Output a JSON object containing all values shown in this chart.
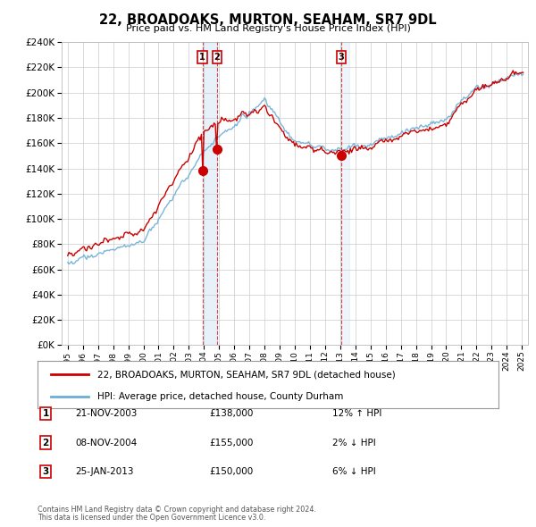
{
  "title": "22, BROADOAKS, MURTON, SEAHAM, SR7 9DL",
  "subtitle": "Price paid vs. HM Land Registry's House Price Index (HPI)",
  "legend_line1": "22, BROADOAKS, MURTON, SEAHAM, SR7 9DL (detached house)",
  "legend_line2": "HPI: Average price, detached house, County Durham",
  "footer1": "Contains HM Land Registry data © Crown copyright and database right 2024.",
  "footer2": "This data is licensed under the Open Government Licence v3.0.",
  "transactions": [
    {
      "label": "1",
      "date": "21-NOV-2003",
      "price": "£138,000",
      "hpi_note": "12% ↑ HPI",
      "x": 2003.9
    },
    {
      "label": "2",
      "date": "08-NOV-2004",
      "price": "£155,000",
      "hpi_note": "2% ↓ HPI",
      "x": 2004.86
    },
    {
      "label": "3",
      "date": "25-JAN-2013",
      "price": "£150,000",
      "hpi_note": "6% ↓ HPI",
      "x": 2013.07
    }
  ],
  "sale_price_1": 138000,
  "sale_price_2": 155000,
  "sale_price_3": 150000,
  "hpi_color": "#6baed6",
  "hpi_fill_color": "#d6e8f7",
  "sale_color": "#cc0000",
  "vline_color": "#cc0000",
  "background_color": "#ffffff",
  "grid_color": "#cccccc",
  "ylim": [
    0,
    240000
  ],
  "yticks": [
    0,
    20000,
    40000,
    60000,
    80000,
    100000,
    120000,
    140000,
    160000,
    180000,
    200000,
    220000,
    240000
  ],
  "xlim_start": 1994.6,
  "xlim_end": 2025.4
}
